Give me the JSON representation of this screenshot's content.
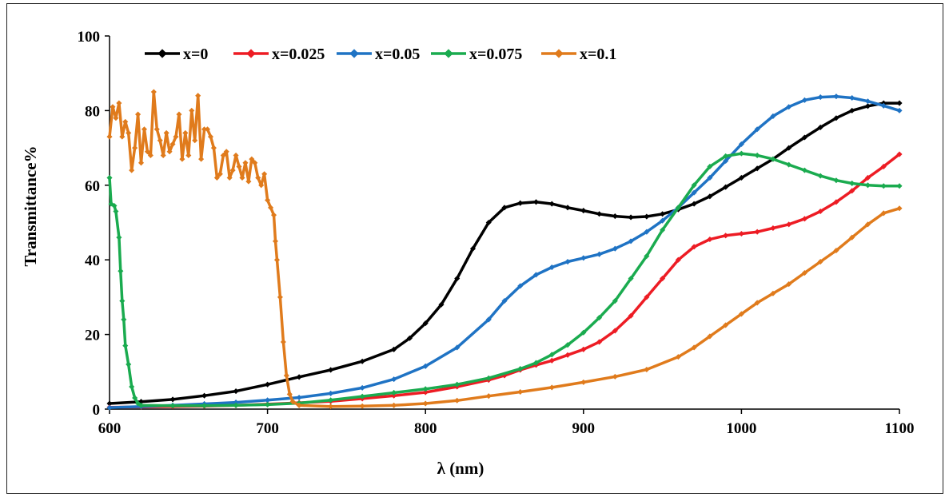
{
  "chart_data": {
    "type": "line",
    "xlabel": "λ (nm)",
    "ylabel": "Transmittance%",
    "xlim": [
      600,
      1100
    ],
    "ylim": [
      0,
      100
    ],
    "xticks": [
      600,
      700,
      800,
      900,
      1000,
      1100
    ],
    "yticks": [
      0,
      20,
      40,
      60,
      80,
      100
    ],
    "grid": false,
    "legend_position": "top",
    "series": [
      {
        "name": "x=0",
        "color": "#000000",
        "points": [
          [
            600,
            1.5
          ],
          [
            620,
            2
          ],
          [
            640,
            2.6
          ],
          [
            660,
            3.6
          ],
          [
            680,
            4.8
          ],
          [
            700,
            6.6
          ],
          [
            720,
            8.6
          ],
          [
            740,
            10.5
          ],
          [
            760,
            12.8
          ],
          [
            780,
            16
          ],
          [
            790,
            19
          ],
          [
            800,
            23
          ],
          [
            810,
            28
          ],
          [
            820,
            35
          ],
          [
            830,
            43
          ],
          [
            840,
            50
          ],
          [
            850,
            54
          ],
          [
            860,
            55.2
          ],
          [
            870,
            55.5
          ],
          [
            880,
            55
          ],
          [
            890,
            54
          ],
          [
            900,
            53.2
          ],
          [
            910,
            52.3
          ],
          [
            920,
            51.7
          ],
          [
            930,
            51.4
          ],
          [
            940,
            51.6
          ],
          [
            950,
            52.3
          ],
          [
            960,
            53.5
          ],
          [
            970,
            55
          ],
          [
            980,
            57
          ],
          [
            990,
            59.5
          ],
          [
            1000,
            62
          ],
          [
            1010,
            64.5
          ],
          [
            1020,
            67
          ],
          [
            1030,
            70
          ],
          [
            1040,
            72.8
          ],
          [
            1050,
            75.5
          ],
          [
            1060,
            78
          ],
          [
            1070,
            80
          ],
          [
            1080,
            81.2
          ],
          [
            1090,
            82
          ],
          [
            1100,
            82
          ]
        ]
      },
      {
        "name": "x=0.025",
        "color": "#ed1c24",
        "points": [
          [
            600,
            0.5
          ],
          [
            620,
            0.6
          ],
          [
            640,
            0.7
          ],
          [
            660,
            0.8
          ],
          [
            680,
            1
          ],
          [
            700,
            1.3
          ],
          [
            720,
            1.7
          ],
          [
            740,
            2.1
          ],
          [
            760,
            2.8
          ],
          [
            780,
            3.6
          ],
          [
            800,
            4.5
          ],
          [
            820,
            6
          ],
          [
            840,
            7.8
          ],
          [
            850,
            9
          ],
          [
            860,
            10.5
          ],
          [
            870,
            11.8
          ],
          [
            880,
            13
          ],
          [
            890,
            14.5
          ],
          [
            900,
            16
          ],
          [
            910,
            18
          ],
          [
            920,
            21
          ],
          [
            930,
            25
          ],
          [
            940,
            30
          ],
          [
            950,
            35
          ],
          [
            960,
            40
          ],
          [
            970,
            43.5
          ],
          [
            980,
            45.5
          ],
          [
            990,
            46.5
          ],
          [
            1000,
            47
          ],
          [
            1010,
            47.5
          ],
          [
            1020,
            48.5
          ],
          [
            1030,
            49.5
          ],
          [
            1040,
            51
          ],
          [
            1050,
            53
          ],
          [
            1060,
            55.5
          ],
          [
            1070,
            58.5
          ],
          [
            1080,
            62
          ],
          [
            1090,
            65
          ],
          [
            1100,
            68.3
          ]
        ]
      },
      {
        "name": "x=0.05",
        "color": "#1f73c4",
        "points": [
          [
            600,
            0.4
          ],
          [
            620,
            0.7
          ],
          [
            640,
            1
          ],
          [
            660,
            1.4
          ],
          [
            680,
            1.8
          ],
          [
            700,
            2.4
          ],
          [
            720,
            3.1
          ],
          [
            740,
            4.2
          ],
          [
            760,
            5.7
          ],
          [
            780,
            8
          ],
          [
            800,
            11.5
          ],
          [
            820,
            16.5
          ],
          [
            840,
            24
          ],
          [
            850,
            29
          ],
          [
            860,
            33
          ],
          [
            870,
            36
          ],
          [
            880,
            38
          ],
          [
            890,
            39.5
          ],
          [
            900,
            40.5
          ],
          [
            910,
            41.5
          ],
          [
            920,
            43
          ],
          [
            930,
            45
          ],
          [
            940,
            47.5
          ],
          [
            950,
            50.5
          ],
          [
            960,
            54
          ],
          [
            970,
            58
          ],
          [
            980,
            62
          ],
          [
            990,
            66.5
          ],
          [
            1000,
            71
          ],
          [
            1010,
            75
          ],
          [
            1020,
            78.5
          ],
          [
            1030,
            81
          ],
          [
            1040,
            82.8
          ],
          [
            1050,
            83.6
          ],
          [
            1060,
            83.8
          ],
          [
            1070,
            83.4
          ],
          [
            1080,
            82.5
          ],
          [
            1090,
            81.3
          ],
          [
            1100,
            80
          ]
        ]
      },
      {
        "name": "x=0.075",
        "color": "#1aab4f",
        "points": [
          [
            600,
            62
          ],
          [
            601,
            55
          ],
          [
            603,
            54.5
          ],
          [
            604,
            53
          ],
          [
            606,
            46
          ],
          [
            607,
            37
          ],
          [
            608,
            29
          ],
          [
            609,
            24
          ],
          [
            610,
            17
          ],
          [
            612,
            12
          ],
          [
            614,
            6
          ],
          [
            616,
            3
          ],
          [
            618,
            1.5
          ],
          [
            620,
            1
          ],
          [
            640,
            0.9
          ],
          [
            660,
            0.9
          ],
          [
            680,
            1
          ],
          [
            700,
            1.2
          ],
          [
            720,
            1.6
          ],
          [
            740,
            2.4
          ],
          [
            760,
            3.4
          ],
          [
            780,
            4.4
          ],
          [
            800,
            5.4
          ],
          [
            820,
            6.6
          ],
          [
            840,
            8.3
          ],
          [
            860,
            10.8
          ],
          [
            870,
            12.4
          ],
          [
            880,
            14.6
          ],
          [
            890,
            17.2
          ],
          [
            900,
            20.5
          ],
          [
            910,
            24.5
          ],
          [
            920,
            29
          ],
          [
            930,
            35
          ],
          [
            940,
            41
          ],
          [
            950,
            48
          ],
          [
            960,
            54
          ],
          [
            970,
            60
          ],
          [
            980,
            65
          ],
          [
            990,
            67.8
          ],
          [
            1000,
            68.5
          ],
          [
            1010,
            68
          ],
          [
            1020,
            67
          ],
          [
            1030,
            65.5
          ],
          [
            1040,
            64
          ],
          [
            1050,
            62.5
          ],
          [
            1060,
            61.3
          ],
          [
            1070,
            60.5
          ],
          [
            1080,
            60
          ],
          [
            1090,
            59.8
          ],
          [
            1100,
            59.8
          ]
        ]
      },
      {
        "name": "x=0.1",
        "color": "#e07b1c",
        "points": [
          [
            600,
            73
          ],
          [
            602,
            81
          ],
          [
            604,
            78
          ],
          [
            606,
            82
          ],
          [
            608,
            73
          ],
          [
            610,
            77
          ],
          [
            612,
            74
          ],
          [
            614,
            64
          ],
          [
            616,
            70
          ],
          [
            618,
            79
          ],
          [
            620,
            66
          ],
          [
            622,
            75
          ],
          [
            624,
            69
          ],
          [
            626,
            68
          ],
          [
            628,
            85
          ],
          [
            630,
            75
          ],
          [
            632,
            72
          ],
          [
            634,
            68
          ],
          [
            636,
            74
          ],
          [
            638,
            69
          ],
          [
            640,
            71
          ],
          [
            642,
            73
          ],
          [
            644,
            79
          ],
          [
            646,
            67
          ],
          [
            648,
            74
          ],
          [
            650,
            68
          ],
          [
            652,
            80
          ],
          [
            654,
            72
          ],
          [
            656,
            84
          ],
          [
            658,
            67
          ],
          [
            660,
            75
          ],
          [
            662,
            75
          ],
          [
            664,
            73
          ],
          [
            666,
            70
          ],
          [
            668,
            62
          ],
          [
            670,
            63
          ],
          [
            672,
            68
          ],
          [
            674,
            69
          ],
          [
            676,
            62
          ],
          [
            678,
            64
          ],
          [
            680,
            68
          ],
          [
            682,
            65
          ],
          [
            684,
            62
          ],
          [
            686,
            66
          ],
          [
            688,
            61
          ],
          [
            690,
            67
          ],
          [
            692,
            66
          ],
          [
            694,
            62
          ],
          [
            696,
            60
          ],
          [
            698,
            63
          ],
          [
            700,
            56
          ],
          [
            702,
            54
          ],
          [
            704,
            52
          ],
          [
            705,
            45
          ],
          [
            706,
            40
          ],
          [
            708,
            30
          ],
          [
            710,
            18
          ],
          [
            712,
            9
          ],
          [
            714,
            4
          ],
          [
            716,
            2
          ],
          [
            720,
            1
          ],
          [
            740,
            0.7
          ],
          [
            760,
            0.8
          ],
          [
            780,
            1
          ],
          [
            800,
            1.5
          ],
          [
            820,
            2.3
          ],
          [
            840,
            3.5
          ],
          [
            860,
            4.6
          ],
          [
            880,
            5.8
          ],
          [
            900,
            7.2
          ],
          [
            920,
            8.7
          ],
          [
            940,
            10.6
          ],
          [
            960,
            14
          ],
          [
            970,
            16.5
          ],
          [
            980,
            19.5
          ],
          [
            990,
            22.5
          ],
          [
            1000,
            25.5
          ],
          [
            1010,
            28.5
          ],
          [
            1020,
            31
          ],
          [
            1030,
            33.5
          ],
          [
            1040,
            36.5
          ],
          [
            1050,
            39.5
          ],
          [
            1060,
            42.5
          ],
          [
            1070,
            46
          ],
          [
            1080,
            49.5
          ],
          [
            1090,
            52.5
          ],
          [
            1100,
            53.8
          ]
        ]
      }
    ]
  }
}
